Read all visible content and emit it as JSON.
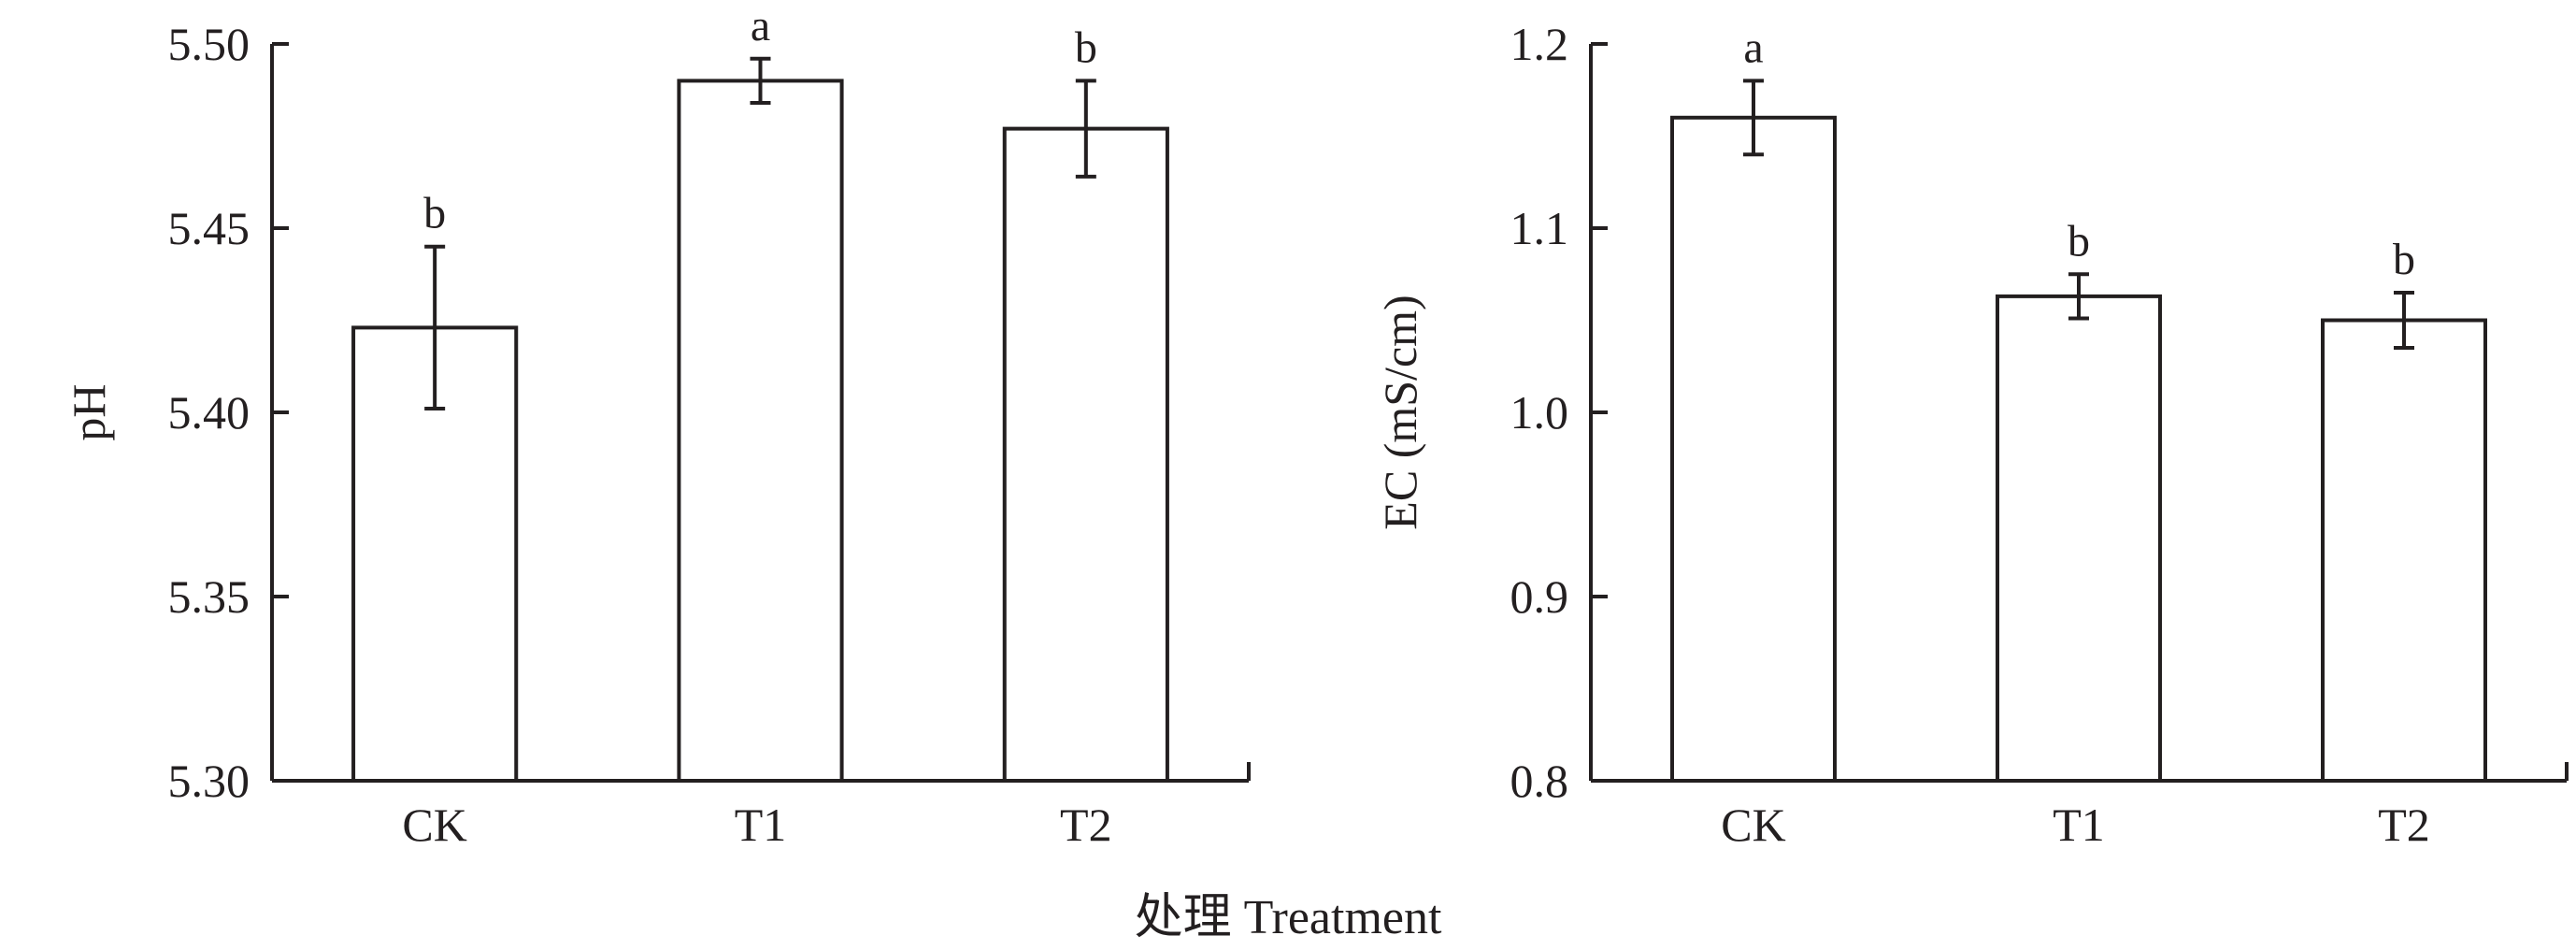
{
  "shared_xlabel": "处理 Treatment",
  "colors": {
    "ink": "#231f20",
    "bar_fill": "#ffffff"
  },
  "chart_data": [
    {
      "type": "bar",
      "title": "",
      "xlabel": "",
      "ylabel": "pH",
      "categories": [
        "CK",
        "T1",
        "T2"
      ],
      "values": [
        5.423,
        5.49,
        5.477
      ],
      "errors": [
        0.022,
        0.006,
        0.013
      ],
      "significance": [
        "b",
        "a",
        "b"
      ],
      "ylim": [
        5.3,
        5.5
      ],
      "yticks": [
        "5.30",
        "5.35",
        "5.40",
        "5.45",
        "5.50"
      ],
      "grid": false,
      "legend": "none"
    },
    {
      "type": "bar",
      "title": "",
      "xlabel": "",
      "ylabel": "EC (mS/cm)",
      "categories": [
        "CK",
        "T1",
        "T2"
      ],
      "values": [
        1.16,
        1.063,
        1.05
      ],
      "errors": [
        0.02,
        0.012,
        0.015
      ],
      "significance": [
        "a",
        "b",
        "b"
      ],
      "ylim": [
        0.8,
        1.2
      ],
      "yticks": [
        "0.8",
        "0.9",
        "1.0",
        "1.1",
        "1.2"
      ],
      "grid": false,
      "legend": "none"
    }
  ]
}
